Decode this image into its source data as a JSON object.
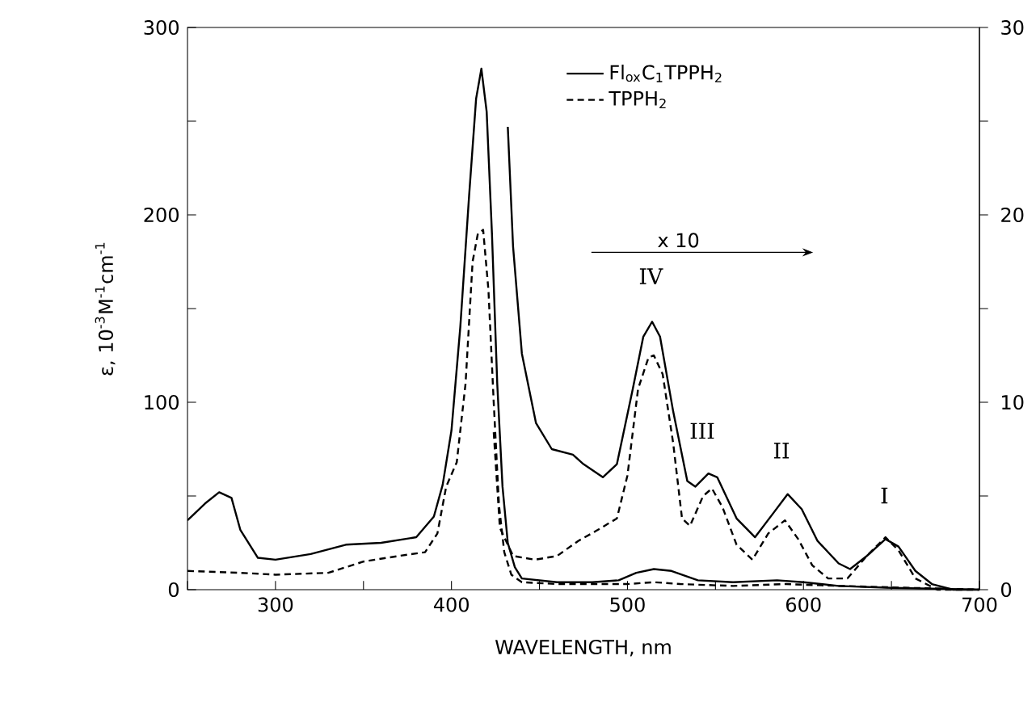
{
  "chart_data": {
    "type": "line",
    "xlabel": "WAVELENGTH, nm",
    "ylabel": "ε, 10$^{-3}$M$^{-1}$cm$^{-1}$",
    "xlim": [
      250,
      700
    ],
    "ylim": [
      0,
      300
    ],
    "y2lim": [
      0,
      30
    ],
    "xticks": [
      {
        "value": 250,
        "label": null
      },
      300,
      {
        "value": 350,
        "label": null
      },
      400,
      {
        "value": 450,
        "label": null
      },
      500,
      {
        "value": 550,
        "label": null
      },
      600,
      {
        "value": 650,
        "label": null
      },
      700
    ],
    "yticks": [
      0,
      {
        "value": 50,
        "label": null
      },
      100,
      {
        "value": 150,
        "label": null
      },
      200,
      {
        "value": 250,
        "label": null
      },
      300
    ],
    "y2ticks": [
      0,
      {
        "value": 5,
        "label": null
      },
      10,
      {
        "value": 15,
        "label": null
      },
      20,
      {
        "value": 25,
        "label": null
      },
      30
    ],
    "legend": "top",
    "series": [
      {
        "name": "Fl$_{ox}$C$_{1}$TPPH$_{2}$",
        "color": "#000000",
        "line_style": "solid",
        "x": [
          250,
          260,
          268,
          275,
          280,
          290,
          300,
          320,
          340,
          360,
          380,
          390,
          395,
          400,
          405,
          410,
          414,
          417,
          420,
          423,
          426,
          429,
          432,
          436,
          440,
          460,
          480,
          495,
          505,
          515,
          525,
          540,
          560,
          585,
          600,
          620,
          650,
          700
        ],
        "values": [
          37,
          46,
          52,
          49,
          32,
          17,
          16,
          19,
          24,
          25,
          28,
          39,
          56,
          85,
          140,
          210,
          262,
          278,
          255,
          190,
          110,
          55,
          25,
          12,
          6,
          4,
          4,
          5,
          9,
          11,
          10,
          5,
          4,
          5,
          4,
          2,
          1,
          0
        ]
      },
      {
        "name": "TPPH$_{2}$",
        "color": "#000000",
        "line_style": "dashed",
        "x": [
          250,
          280,
          300,
          330,
          350,
          370,
          385,
          392,
          397,
          403,
          408,
          412,
          415,
          418,
          421,
          424,
          427,
          430,
          434,
          440,
          460,
          500,
          515,
          530,
          560,
          590,
          620,
          660,
          700
        ],
        "values": [
          10,
          9,
          8,
          9,
          15,
          18,
          20,
          30,
          55,
          68,
          110,
          175,
          190,
          192,
          160,
          100,
          45,
          20,
          8,
          4,
          3,
          3,
          4,
          3,
          2,
          3,
          2,
          1,
          0
        ]
      },
      {
        "color": "#000000",
        "line_style": "solid",
        "axis": "y2",
        "x": [
          432,
          435,
          440,
          448,
          457,
          469,
          475,
          486,
          494,
          503,
          509,
          514,
          518.5,
          526,
          534,
          538.6,
          546,
          551,
          562,
          572.5,
          583,
          591,
          599,
          608,
          620,
          626.5,
          636,
          646.6,
          654,
          663.6,
          673,
          685,
          700
        ],
        "values": [
          24.7,
          18.3,
          12.6,
          8.9,
          7.5,
          7.2,
          6.7,
          6.0,
          6.7,
          10.7,
          13.5,
          14.3,
          13.5,
          9.5,
          5.8,
          5.5,
          6.2,
          6.0,
          3.8,
          2.8,
          4.1,
          5.1,
          4.3,
          2.6,
          1.4,
          1.1,
          1.8,
          2.7,
          2.3,
          1.0,
          0.3,
          0,
          0
        ]
      },
      {
        "color": "#000000",
        "line_style": "dashed",
        "axis": "y2",
        "x": [
          424,
          427.5,
          435,
          447.5,
          460,
          472,
          481.5,
          494,
          500,
          506,
          512,
          515,
          520,
          526,
          531,
          535.5,
          543,
          548,
          554,
          562,
          571,
          580,
          589.5,
          597,
          605,
          614,
          625,
          636,
          646.6,
          654,
          663.6,
          676,
          700
        ],
        "values": [
          8.4,
          3.3,
          1.8,
          1.6,
          1.8,
          2.6,
          3.1,
          3.8,
          6.1,
          10.7,
          12.4,
          12.5,
          11.5,
          7.8,
          3.8,
          3.4,
          5.0,
          5.4,
          4.4,
          2.4,
          1.6,
          3.0,
          3.7,
          2.7,
          1.3,
          0.6,
          0.6,
          1.8,
          2.8,
          2.1,
          0.6,
          0,
          0
        ]
      }
    ],
    "annotations": [
      "IV",
      "III",
      "II",
      "I",
      "x 10"
    ]
  }
}
